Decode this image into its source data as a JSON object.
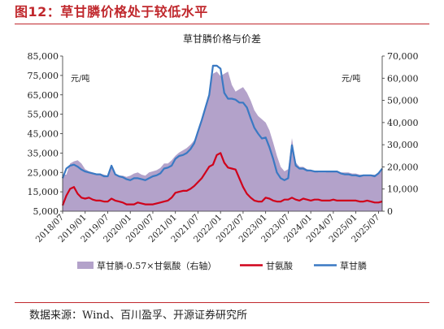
{
  "figure": {
    "title": "图12：草甘膦价格处于较低水平",
    "source": "数据来源：Wind、百川盈孚、开源证券研究所"
  },
  "chart_data": {
    "type": "line",
    "title": "草甘膦价格与价差",
    "ylabel_left": "元/吨",
    "ylabel_right": "元/吨",
    "ylim_left": [
      5000,
      85000
    ],
    "yticks_left": [
      5000,
      15000,
      25000,
      35000,
      45000,
      55000,
      65000,
      75000,
      85000
    ],
    "ylim_right": [
      0,
      70000
    ],
    "yticks_right": [
      0,
      10000,
      20000,
      30000,
      40000,
      50000,
      60000,
      70000
    ],
    "x_tick_labels": [
      "2018/07",
      "2019/01",
      "2019/07",
      "2020/01",
      "2020/07",
      "2021/01",
      "2021/07",
      "2022/01",
      "2022/07",
      "2023/01",
      "2023/07",
      "2024/01",
      "2024/07",
      "2025/01",
      "2025/07"
    ],
    "x": [
      "2018/07",
      "2018/08",
      "2018/09",
      "2018/10",
      "2018/11",
      "2018/12",
      "2019/01",
      "2019/02",
      "2019/03",
      "2019/04",
      "2019/05",
      "2019/06",
      "2019/07",
      "2019/08",
      "2019/09",
      "2019/10",
      "2019/11",
      "2019/12",
      "2020/01",
      "2020/02",
      "2020/03",
      "2020/04",
      "2020/05",
      "2020/06",
      "2020/07",
      "2020/08",
      "2020/09",
      "2020/10",
      "2020/11",
      "2020/12",
      "2021/01",
      "2021/02",
      "2021/03",
      "2021/04",
      "2021/05",
      "2021/06",
      "2021/07",
      "2021/08",
      "2021/09",
      "2021/10",
      "2021/11",
      "2021/12",
      "2022/01",
      "2022/02",
      "2022/03",
      "2022/04",
      "2022/05",
      "2022/06",
      "2022/07",
      "2022/08",
      "2022/09",
      "2022/10",
      "2022/11",
      "2022/12",
      "2023/01",
      "2023/02",
      "2023/03",
      "2023/04",
      "2023/05",
      "2023/06",
      "2023/07",
      "2023/08",
      "2023/09",
      "2023/10",
      "2023/11",
      "2023/12",
      "2024/01",
      "2024/02",
      "2024/03",
      "2024/04",
      "2024/05",
      "2024/06",
      "2024/07",
      "2024/08",
      "2024/09",
      "2024/10",
      "2024/11",
      "2024/12",
      "2025/01",
      "2025/02",
      "2025/03",
      "2025/04",
      "2025/05",
      "2025/06",
      "2025/07",
      "2025/08"
    ],
    "series": [
      {
        "name": "草甘膦-0.57×甘氨酸（右轴）",
        "kind": "area",
        "axis": "right",
        "color": "#b3a2ca",
        "values": [
          16500,
          16500,
          21500,
          22500,
          23000,
          21500,
          19000,
          18000,
          17500,
          17000,
          17000,
          16500,
          16000,
          20500,
          16500,
          16000,
          16000,
          15500,
          16000,
          17000,
          17500,
          16500,
          16000,
          17500,
          18000,
          18500,
          19500,
          21500,
          21500,
          23000,
          25000,
          26500,
          27500,
          28500,
          30000,
          32000,
          36000,
          42000,
          48000,
          53000,
          62000,
          63000,
          61000,
          62000,
          63000,
          57000,
          54000,
          55000,
          56000,
          53500,
          50000,
          45500,
          43000,
          41500,
          40000,
          36500,
          31000,
          25000,
          20000,
          18000,
          19000,
          33000,
          22000,
          20000,
          20000,
          19000,
          18500,
          18000,
          17500,
          17500,
          17500,
          18000,
          18000,
          18000,
          17500,
          17500,
          17500,
          17000,
          17000,
          16500,
          16500,
          16500,
          16500,
          16500,
          17000,
          18500
        ]
      },
      {
        "name": "甘氨酸",
        "kind": "line",
        "axis": "left",
        "color": "#d0021b",
        "values": [
          8000,
          13000,
          16500,
          17500,
          14000,
          12000,
          11500,
          12000,
          11000,
          10500,
          10500,
          10000,
          10000,
          11500,
          10500,
          10000,
          9500,
          8500,
          8500,
          8500,
          9500,
          9000,
          8500,
          8500,
          8500,
          9000,
          9500,
          10000,
          10500,
          12000,
          14500,
          15000,
          15500,
          15500,
          16500,
          18000,
          20000,
          22000,
          25000,
          28000,
          29000,
          34000,
          35000,
          30000,
          27500,
          27000,
          26500,
          22000,
          17500,
          14000,
          12000,
          10500,
          10000,
          10000,
          12000,
          11500,
          10500,
          10000,
          10000,
          11000,
          11000,
          12000,
          11000,
          10500,
          11500,
          11000,
          10500,
          11000,
          11000,
          10500,
          10500,
          10500,
          11000,
          10500,
          10500,
          10500,
          10500,
          10500,
          10500,
          10000,
          10000,
          10500,
          10000,
          9500,
          9500,
          10000
        ]
      },
      {
        "name": "草甘膦",
        "kind": "line",
        "axis": "left",
        "color": "#3a79c3",
        "values": [
          22000,
          27000,
          28500,
          29000,
          28000,
          26500,
          25500,
          25000,
          24500,
          24000,
          24000,
          23000,
          23000,
          28500,
          24000,
          23000,
          22500,
          21500,
          21000,
          22000,
          22000,
          21500,
          21000,
          22000,
          23000,
          23500,
          24500,
          27000,
          27500,
          28500,
          32000,
          33500,
          34000,
          35000,
          37000,
          40000,
          46000,
          52000,
          58500,
          65000,
          80000,
          80000,
          78500,
          66000,
          63000,
          63000,
          62500,
          61000,
          61000,
          58500,
          53000,
          48000,
          45000,
          42500,
          43000,
          38000,
          32000,
          25000,
          22000,
          21000,
          22000,
          39000,
          28500,
          27000,
          27000,
          26000,
          26000,
          25500,
          25500,
          25500,
          25500,
          25500,
          25500,
          25500,
          24500,
          24000,
          24000,
          23500,
          23500,
          23000,
          23500,
          23500,
          23500,
          23000,
          24500,
          27000
        ]
      }
    ],
    "legend_position": "bottom",
    "grid": false
  }
}
